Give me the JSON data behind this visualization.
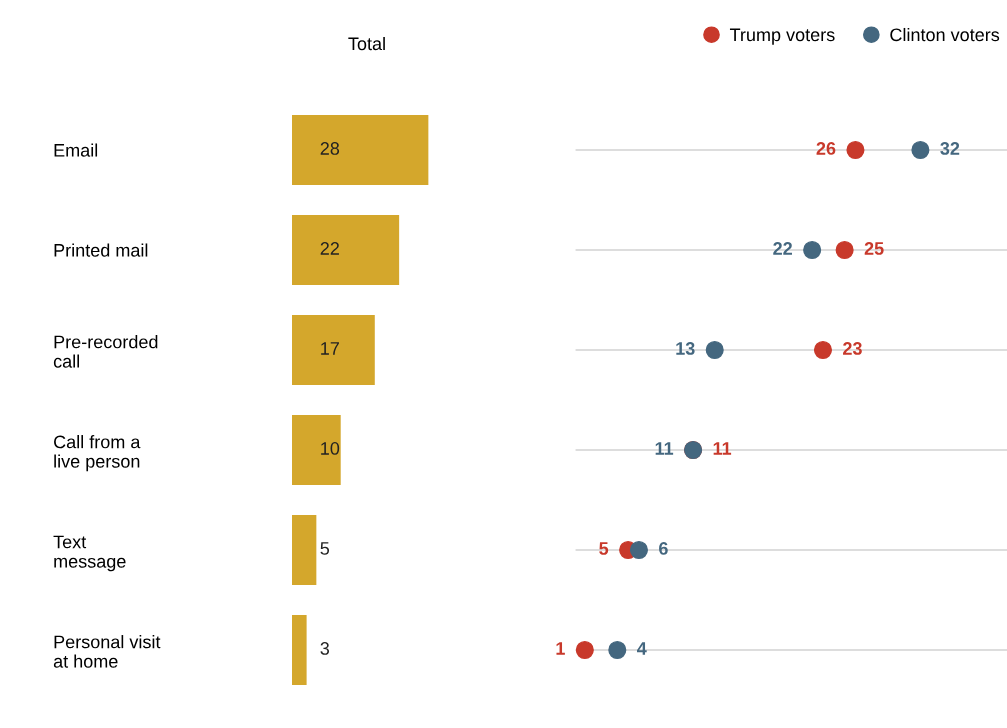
{
  "chart_data": [
    {
      "type": "bar",
      "orientation": "horizontal",
      "title": "Total",
      "categories": [
        "Email",
        "Printed mail",
        "Pre-recorded\ncall",
        "Call from a\nlive person",
        "Text\nmessage",
        "Personal visit\nat home"
      ],
      "values": [
        28,
        22,
        17,
        10,
        5,
        3
      ],
      "color": "#d4a72c",
      "data_labels": true
    },
    {
      "type": "scatter",
      "orientation": "horizontal",
      "grid": "y",
      "legend": "top right",
      "marker": "circle",
      "data_labels": true,
      "series": [
        {
          "name": "Trump voters",
          "color": "#c8392b",
          "values": [
            26,
            25,
            23,
            11,
            5,
            1
          ]
        },
        {
          "name": "Clinton voters",
          "color": "#44677f",
          "values": [
            32,
            22,
            13,
            11,
            6,
            4
          ]
        }
      ]
    }
  ]
}
